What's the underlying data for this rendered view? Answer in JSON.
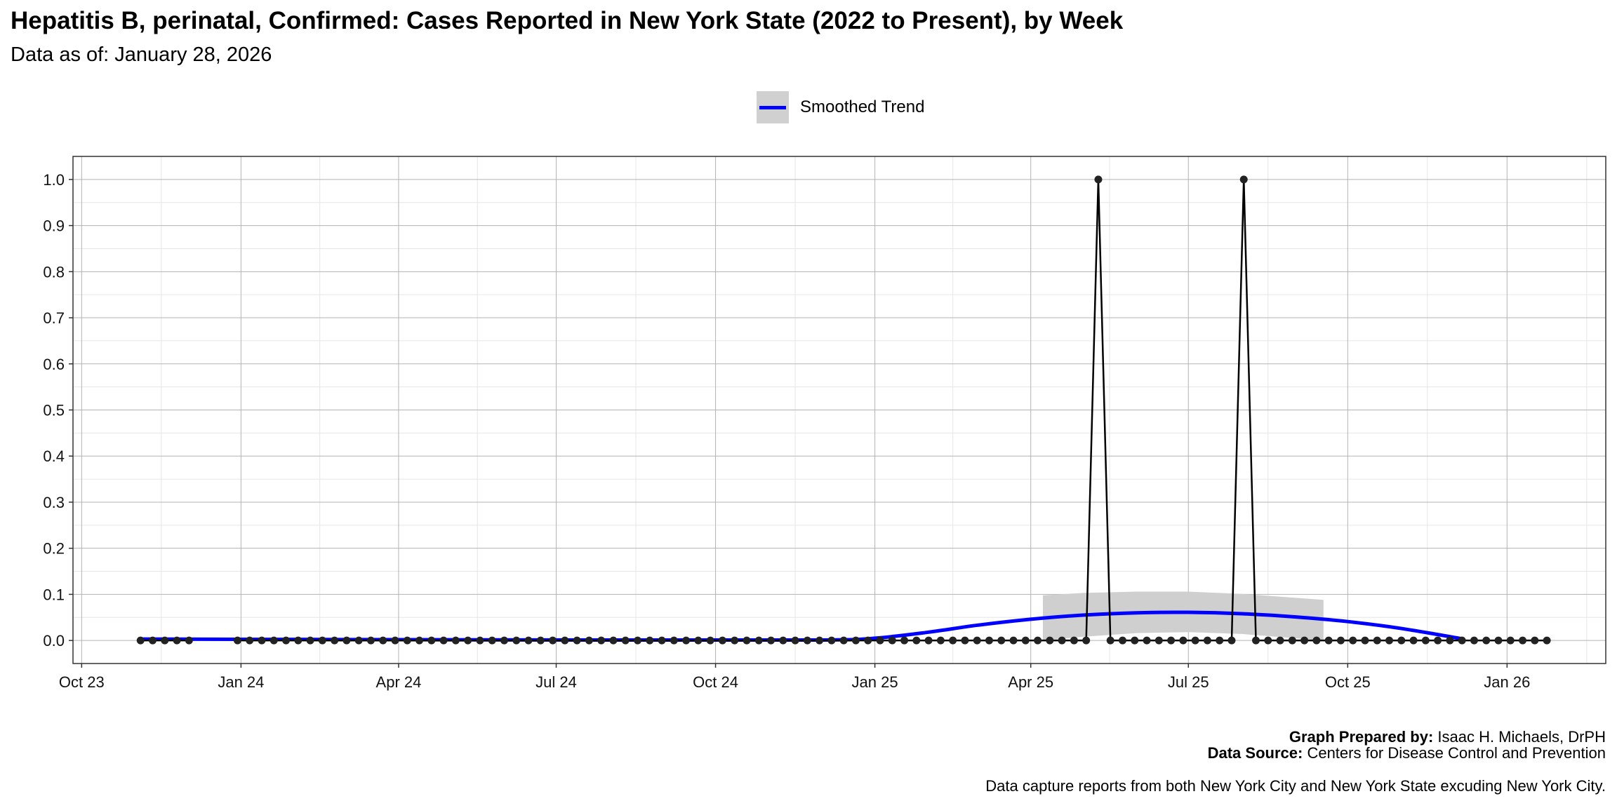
{
  "chart_data": {
    "type": "line",
    "title": "Hepatitis B, perinatal, Confirmed: Cases Reported in New York State (2022 to Present), by Week",
    "subtitle": "Data as of: January 28, 2026",
    "xlabel": "",
    "ylabel": "",
    "xlim": [
      "2023-09-26",
      "2026-02-27"
    ],
    "ylim": [
      -0.05,
      1.05
    ],
    "grid": true,
    "legend_position": "top",
    "legend": [
      {
        "label": "Smoothed Trend",
        "color": "#0000ff"
      }
    ],
    "x_ticks": [
      {
        "date": "2023-10-01",
        "label": "Oct 23"
      },
      {
        "date": "2024-01-01",
        "label": "Jan 24"
      },
      {
        "date": "2024-04-01",
        "label": "Apr 24"
      },
      {
        "date": "2024-07-01",
        "label": "Jul 24"
      },
      {
        "date": "2024-10-01",
        "label": "Oct 24"
      },
      {
        "date": "2025-01-01",
        "label": "Jan 25"
      },
      {
        "date": "2025-04-01",
        "label": "Apr 25"
      },
      {
        "date": "2025-07-01",
        "label": "Jul 25"
      },
      {
        "date": "2025-10-01",
        "label": "Oct 25"
      },
      {
        "date": "2026-01-01",
        "label": "Jan 26"
      }
    ],
    "y_ticks": [
      "0.0",
      "0.1",
      "0.2",
      "0.3",
      "0.4",
      "0.5",
      "0.6",
      "0.7",
      "0.8",
      "0.9",
      "1.0"
    ],
    "series": [
      {
        "name": "Weekly cases",
        "segments": [
          {
            "start": "2023-11-04",
            "interval_days": 7,
            "values": [
              0,
              0,
              0,
              0,
              0
            ]
          },
          {
            "start": "2023-12-30",
            "interval_days": 7,
            "values": [
              0,
              0,
              0,
              0,
              0,
              0,
              0,
              0,
              0,
              0,
              0,
              0,
              0,
              0,
              0,
              0,
              0,
              0,
              0,
              0,
              0,
              0,
              0,
              0,
              0,
              0,
              0,
              0,
              0,
              0,
              0,
              0,
              0,
              0,
              0,
              0,
              0,
              0,
              0,
              0,
              0,
              0,
              0,
              0,
              0,
              0,
              0,
              0,
              0,
              0,
              0,
              0,
              0,
              0,
              0,
              0,
              0,
              0,
              0,
              0,
              0,
              0,
              0,
              0,
              0,
              0,
              0,
              0,
              0,
              0,
              0,
              1,
              0,
              0,
              0,
              0,
              0,
              0,
              0,
              0,
              0,
              0,
              0,
              1,
              0,
              0,
              0,
              0,
              0,
              0,
              0,
              0,
              0,
              0,
              0,
              0,
              0,
              0,
              0,
              0,
              0,
              0,
              0,
              0,
              0,
              0,
              0,
              0,
              0
            ]
          }
        ]
      }
    ],
    "smoothed_trend": {
      "name": "Smoothed Trend",
      "points": [
        [
          "2023-11-04",
          0.003
        ],
        [
          "2024-03-01",
          0.002
        ],
        [
          "2024-08-01",
          0.001
        ],
        [
          "2024-12-01",
          0.001
        ],
        [
          "2025-01-01",
          0.005
        ],
        [
          "2025-02-01",
          0.018
        ],
        [
          "2025-03-01",
          0.033
        ],
        [
          "2025-04-01",
          0.046
        ],
        [
          "2025-05-01",
          0.055
        ],
        [
          "2025-06-01",
          0.06
        ],
        [
          "2025-07-01",
          0.061
        ],
        [
          "2025-08-01",
          0.058
        ],
        [
          "2025-09-01",
          0.051
        ],
        [
          "2025-10-01",
          0.041
        ],
        [
          "2025-11-01",
          0.026
        ],
        [
          "2025-12-07",
          0.003
        ]
      ],
      "band": [
        [
          "2025-04-08",
          0.0,
          0.098
        ],
        [
          "2025-05-01",
          0.008,
          0.103
        ],
        [
          "2025-06-01",
          0.016,
          0.106
        ],
        [
          "2025-07-01",
          0.018,
          0.106
        ],
        [
          "2025-08-01",
          0.014,
          0.101
        ],
        [
          "2025-09-17",
          0.0,
          0.088
        ]
      ]
    }
  },
  "footer": {
    "prepared_label": "Graph Prepared by:",
    "prepared_value": " Isaac H. Michaels, DrPH",
    "source_label": "Data Source:",
    "source_value": " Centers for Disease Control and Prevention",
    "note": "Data capture reports from both New York City and New York State excuding New York City."
  }
}
